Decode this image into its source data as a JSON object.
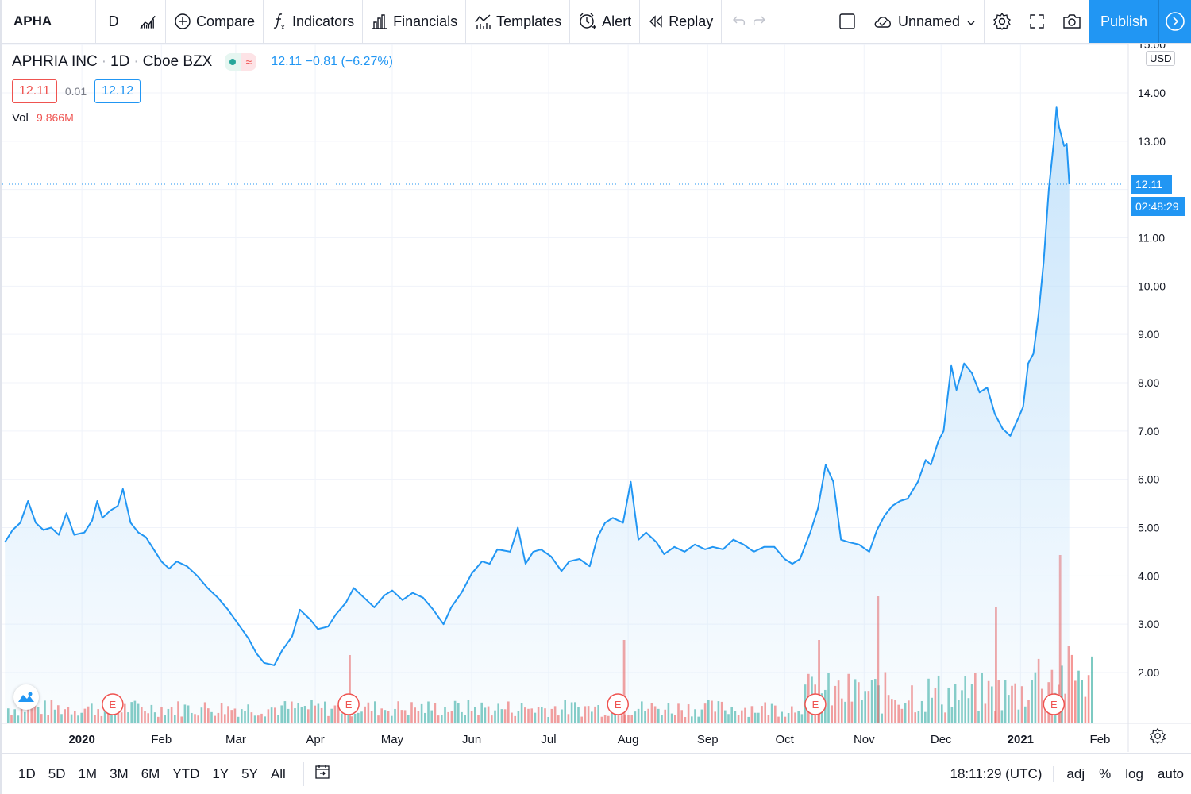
{
  "toolbar": {
    "symbol": "APHA",
    "interval": "D",
    "compare_label": "Compare",
    "indicators_label": "Indicators",
    "financials_label": "Financials",
    "templates_label": "Templates",
    "alert_label": "Alert",
    "replay_label": "Replay",
    "layout_label": "Unnamed",
    "publish_label": "Publish"
  },
  "legend": {
    "name": "APHRIA INC",
    "interval": "1D",
    "exchange": "Cboe BZX",
    "change_text": "12.11 −0.81 (−6.27%)",
    "bid": "12.11",
    "spread": "0.01",
    "ask": "12.12",
    "vol_label": "Vol",
    "vol_value": "9.866M"
  },
  "axis": {
    "currency": "USD",
    "last_price_label": "12.11",
    "countdown": "02:48:29"
  },
  "bottombar": {
    "ranges": [
      "1D",
      "5D",
      "1M",
      "3M",
      "6M",
      "YTD",
      "1Y",
      "5Y",
      "All"
    ],
    "time": "18:11:29 (UTC)",
    "options": [
      "adj",
      "%",
      "log",
      "auto"
    ]
  },
  "colors": {
    "line": "#2196f3",
    "area_top": "#bfe0fa",
    "vol_up": "#26a69a",
    "vol_down": "#ef5350",
    "grid": "#f0f3fa",
    "accent": "#2196f3"
  },
  "chart_data": {
    "type": "area",
    "title": "APHRIA INC · 1D · Cboe BZX",
    "ylabel": "USD",
    "ylim": [
      1.0,
      15.0
    ],
    "yticks": [
      "15.00",
      "14.00",
      "13.00",
      "12.00",
      "11.00",
      "10.00",
      "9.00",
      "8.00",
      "7.00",
      "6.00",
      "5.00",
      "4.00",
      "3.00",
      "2.00"
    ],
    "x_tick_labels": [
      "2020",
      "Feb",
      "Mar",
      "Apr",
      "May",
      "Jun",
      "Jul",
      "Aug",
      "Sep",
      "Oct",
      "Nov",
      "Dec",
      "2021",
      "Feb"
    ],
    "x_tick_dates": [
      "2020-01-01",
      "2020-02-01",
      "2020-03-01",
      "2020-04-01",
      "2020-05-01",
      "2020-06-01",
      "2020-07-01",
      "2020-08-01",
      "2020-09-01",
      "2020-10-01",
      "2020-11-01",
      "2020-12-01",
      "2021-01-01",
      "2021-02-01"
    ],
    "last_price": 12.11,
    "earnings_markers": [
      "2020-01-13",
      "2020-04-14",
      "2020-07-28",
      "2020-10-13",
      "2021-01-14"
    ],
    "earnings_marker_label": "E",
    "series": [
      {
        "name": "APHA",
        "points": [
          [
            "2019-12-02",
            4.7
          ],
          [
            "2019-12-05",
            4.95
          ],
          [
            "2019-12-08",
            5.1
          ],
          [
            "2019-12-11",
            5.55
          ],
          [
            "2019-12-14",
            5.1
          ],
          [
            "2019-12-17",
            4.95
          ],
          [
            "2019-12-20",
            5.0
          ],
          [
            "2019-12-23",
            4.85
          ],
          [
            "2019-12-26",
            5.3
          ],
          [
            "2019-12-29",
            4.85
          ],
          [
            "2020-01-02",
            4.9
          ],
          [
            "2020-01-05",
            5.15
          ],
          [
            "2020-01-07",
            5.55
          ],
          [
            "2020-01-09",
            5.2
          ],
          [
            "2020-01-12",
            5.35
          ],
          [
            "2020-01-15",
            5.45
          ],
          [
            "2020-01-17",
            5.8
          ],
          [
            "2020-01-20",
            5.1
          ],
          [
            "2020-01-23",
            4.9
          ],
          [
            "2020-01-26",
            4.8
          ],
          [
            "2020-01-29",
            4.55
          ],
          [
            "2020-02-01",
            4.3
          ],
          [
            "2020-02-04",
            4.15
          ],
          [
            "2020-02-07",
            4.3
          ],
          [
            "2020-02-11",
            4.2
          ],
          [
            "2020-02-15",
            4.0
          ],
          [
            "2020-02-19",
            3.75
          ],
          [
            "2020-02-23",
            3.55
          ],
          [
            "2020-02-27",
            3.3
          ],
          [
            "2020-03-02",
            3.0
          ],
          [
            "2020-03-06",
            2.7
          ],
          [
            "2020-03-09",
            2.4
          ],
          [
            "2020-03-12",
            2.2
          ],
          [
            "2020-03-16",
            2.15
          ],
          [
            "2020-03-19",
            2.45
          ],
          [
            "2020-03-23",
            2.75
          ],
          [
            "2020-03-26",
            3.3
          ],
          [
            "2020-03-30",
            3.1
          ],
          [
            "2020-04-02",
            2.9
          ],
          [
            "2020-04-06",
            2.95
          ],
          [
            "2020-04-09",
            3.2
          ],
          [
            "2020-04-13",
            3.45
          ],
          [
            "2020-04-16",
            3.75
          ],
          [
            "2020-04-20",
            3.55
          ],
          [
            "2020-04-24",
            3.35
          ],
          [
            "2020-04-28",
            3.6
          ],
          [
            "2020-05-01",
            3.7
          ],
          [
            "2020-05-05",
            3.5
          ],
          [
            "2020-05-09",
            3.65
          ],
          [
            "2020-05-13",
            3.55
          ],
          [
            "2020-05-17",
            3.3
          ],
          [
            "2020-05-21",
            3.0
          ],
          [
            "2020-05-24",
            3.35
          ],
          [
            "2020-05-28",
            3.65
          ],
          [
            "2020-06-01",
            4.05
          ],
          [
            "2020-06-05",
            4.3
          ],
          [
            "2020-06-08",
            4.25
          ],
          [
            "2020-06-11",
            4.55
          ],
          [
            "2020-06-16",
            4.5
          ],
          [
            "2020-06-19",
            5.0
          ],
          [
            "2020-06-22",
            4.25
          ],
          [
            "2020-06-25",
            4.5
          ],
          [
            "2020-06-28",
            4.55
          ],
          [
            "2020-07-02",
            4.4
          ],
          [
            "2020-07-06",
            4.1
          ],
          [
            "2020-07-09",
            4.3
          ],
          [
            "2020-07-13",
            4.35
          ],
          [
            "2020-07-17",
            4.2
          ],
          [
            "2020-07-20",
            4.8
          ],
          [
            "2020-07-23",
            5.1
          ],
          [
            "2020-07-26",
            5.2
          ],
          [
            "2020-07-30",
            5.1
          ],
          [
            "2020-08-02",
            5.95
          ],
          [
            "2020-08-05",
            4.75
          ],
          [
            "2020-08-08",
            4.9
          ],
          [
            "2020-08-12",
            4.7
          ],
          [
            "2020-08-15",
            4.45
          ],
          [
            "2020-08-19",
            4.6
          ],
          [
            "2020-08-23",
            4.5
          ],
          [
            "2020-08-27",
            4.65
          ],
          [
            "2020-08-31",
            4.55
          ],
          [
            "2020-09-03",
            4.6
          ],
          [
            "2020-09-07",
            4.55
          ],
          [
            "2020-09-11",
            4.75
          ],
          [
            "2020-09-15",
            4.65
          ],
          [
            "2020-09-19",
            4.5
          ],
          [
            "2020-09-23",
            4.6
          ],
          [
            "2020-09-27",
            4.6
          ],
          [
            "2020-10-01",
            4.35
          ],
          [
            "2020-10-04",
            4.25
          ],
          [
            "2020-10-07",
            4.35
          ],
          [
            "2020-10-11",
            4.9
          ],
          [
            "2020-10-14",
            5.4
          ],
          [
            "2020-10-17",
            6.3
          ],
          [
            "2020-10-20",
            5.95
          ],
          [
            "2020-10-23",
            4.75
          ],
          [
            "2020-10-26",
            4.7
          ],
          [
            "2020-10-30",
            4.65
          ],
          [
            "2020-11-03",
            4.5
          ],
          [
            "2020-11-06",
            4.95
          ],
          [
            "2020-11-09",
            5.25
          ],
          [
            "2020-11-12",
            5.45
          ],
          [
            "2020-11-15",
            5.55
          ],
          [
            "2020-11-18",
            5.6
          ],
          [
            "2020-11-22",
            5.95
          ],
          [
            "2020-11-25",
            6.4
          ],
          [
            "2020-11-27",
            6.3
          ],
          [
            "2020-11-30",
            6.8
          ],
          [
            "2020-12-02",
            7.0
          ],
          [
            "2020-12-05",
            8.35
          ],
          [
            "2020-12-07",
            7.85
          ],
          [
            "2020-12-10",
            8.4
          ],
          [
            "2020-12-13",
            8.2
          ],
          [
            "2020-12-16",
            7.8
          ],
          [
            "2020-12-19",
            7.9
          ],
          [
            "2020-12-22",
            7.35
          ],
          [
            "2020-12-25",
            7.05
          ],
          [
            "2020-12-28",
            6.9
          ],
          [
            "2020-12-31",
            7.25
          ],
          [
            "2021-01-02",
            7.5
          ],
          [
            "2021-01-04",
            8.4
          ],
          [
            "2021-01-06",
            8.6
          ],
          [
            "2021-01-08",
            9.4
          ],
          [
            "2021-01-10",
            10.5
          ],
          [
            "2021-01-12",
            12.0
          ],
          [
            "2021-01-14",
            13.0
          ],
          [
            "2021-01-15",
            13.7
          ],
          [
            "2021-01-16",
            13.3
          ],
          [
            "2021-01-18",
            12.9
          ],
          [
            "2021-01-19",
            12.95
          ],
          [
            "2021-01-20",
            12.11
          ]
        ]
      }
    ],
    "volume_note": "daily volume histogram, colored up/down",
    "volume_highlights": [
      [
        "2020-04-14",
        "high"
      ],
      [
        "2020-07-30",
        "high"
      ],
      [
        "2020-10-14",
        "high"
      ],
      [
        "2020-11-06",
        "high"
      ],
      [
        "2020-12-22",
        "high"
      ],
      [
        "2021-01-16",
        "highest"
      ]
    ]
  }
}
